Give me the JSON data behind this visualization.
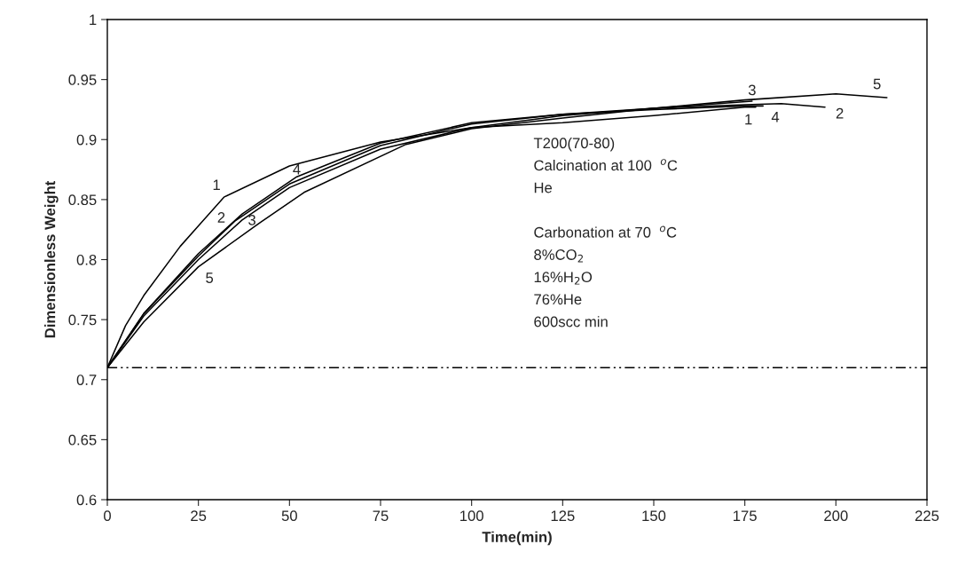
{
  "chart_data": {
    "type": "line",
    "xlabel": "Time(min)",
    "ylabel": "Dimensionless Weight",
    "xlim": [
      0,
      225
    ],
    "xticks": [
      0,
      25,
      50,
      75,
      100,
      125,
      150,
      175,
      200,
      225
    ],
    "ylim": [
      0.6,
      1
    ],
    "yticks": [
      0.6,
      0.65,
      0.7,
      0.75,
      0.8,
      0.85,
      0.9,
      0.95,
      1
    ],
    "grid": false,
    "legend": false,
    "marker": "none",
    "line_style": "solid",
    "series": [
      {
        "color": "#000000",
        "x": [
          0,
          5,
          10,
          20,
          32,
          50,
          75,
          100,
          125,
          150,
          175,
          178
        ],
        "values": [
          0.71,
          0.745,
          0.77,
          0.811,
          0.852,
          0.878,
          0.898,
          0.91,
          0.914,
          0.92,
          0.927,
          0.927
        ]
      },
      {
        "color": "#000000",
        "x": [
          0,
          10,
          25,
          35,
          50,
          75,
          100,
          125,
          150,
          175,
          185,
          197
        ],
        "values": [
          0.71,
          0.755,
          0.803,
          0.832,
          0.863,
          0.895,
          0.913,
          0.921,
          0.926,
          0.929,
          0.93,
          0.927
        ]
      },
      {
        "color": "#000000",
        "x": [
          0,
          10,
          25,
          37,
          50,
          75,
          100,
          125,
          150,
          177
        ],
        "values": [
          0.71,
          0.753,
          0.8,
          0.833,
          0.86,
          0.892,
          0.91,
          0.92,
          0.926,
          0.932
        ]
      },
      {
        "color": "#000000",
        "x": [
          0,
          10,
          25,
          37,
          52,
          75,
          100,
          125,
          150,
          175,
          180
        ],
        "values": [
          0.71,
          0.755,
          0.805,
          0.838,
          0.869,
          0.897,
          0.914,
          0.921,
          0.925,
          0.928,
          0.928
        ]
      },
      {
        "color": "#000000",
        "x": [
          0,
          10,
          25,
          42,
          54,
          82,
          100,
          125,
          150,
          175,
          200,
          214
        ],
        "values": [
          0.71,
          0.748,
          0.794,
          0.831,
          0.856,
          0.896,
          0.909,
          0.918,
          0.926,
          0.933,
          0.938,
          0.935
        ]
      }
    ],
    "ref_lines": [
      {
        "axis": "y",
        "value": 0.71,
        "line_style": "dash-dot-dot",
        "color": "#000000"
      }
    ],
    "annotations": [
      {
        "text": "1",
        "x": 32,
        "y": 0.852
      },
      {
        "text": "2",
        "x": 35,
        "y": 0.832
      },
      {
        "text": "3",
        "x": 37,
        "y": 0.833
      },
      {
        "text": "4",
        "x": 52,
        "y": 0.869
      },
      {
        "text": "5",
        "x": 25,
        "y": 0.794
      },
      {
        "text": "1",
        "x": 178,
        "y": 0.927
      },
      {
        "text": "2",
        "x": 197,
        "y": 0.927
      },
      {
        "text": "3",
        "x": 177,
        "y": 0.932
      },
      {
        "text": "4",
        "x": 180,
        "y": 0.928
      },
      {
        "text": "5",
        "x": 214,
        "y": 0.935
      },
      "T200(70-80)",
      "Calcination at 100  $^{o}$C",
      "He",
      "Carbonation at 70  $^{o}$C",
      "8%CO$_{2}$",
      "16%H$_{2}$O",
      "76%He",
      "600scc min"
    ]
  }
}
